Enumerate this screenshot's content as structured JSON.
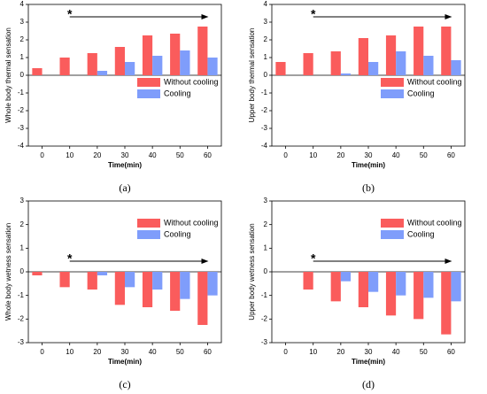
{
  "chart_data": [
    {
      "type": "bar",
      "panel_label": "(a)",
      "ylabel": "Whole body thermal sensation",
      "xlabel": "Time(min)",
      "annotation": "*",
      "categories": [
        "0",
        "10",
        "20",
        "30",
        "40",
        "50",
        "60"
      ],
      "series": [
        {
          "name": "Without cooling",
          "color": "#fa5c5c",
          "values": [
            0.4,
            1.0,
            1.25,
            1.6,
            2.25,
            2.35,
            2.75
          ]
        },
        {
          "name": "Cooling",
          "color": "#7f9dfb",
          "values": [
            null,
            null,
            0.25,
            0.75,
            1.1,
            1.4,
            1.0
          ]
        }
      ],
      "ylim": [
        -4,
        4
      ],
      "yticks": [
        -4,
        -3,
        -2,
        -1,
        0,
        1,
        2,
        3,
        4
      ],
      "legend": "lower right"
    },
    {
      "type": "bar",
      "panel_label": "(b)",
      "ylabel": "Upper body thermal sensation",
      "xlabel": "Time(min)",
      "annotation": "*",
      "categories": [
        "0",
        "10",
        "20",
        "30",
        "40",
        "50",
        "60"
      ],
      "series": [
        {
          "name": "Without cooling",
          "color": "#fa5c5c",
          "values": [
            0.75,
            1.25,
            1.35,
            2.1,
            2.25,
            2.75,
            2.75
          ]
        },
        {
          "name": "Cooling",
          "color": "#7f9dfb",
          "values": [
            null,
            null,
            0.1,
            0.75,
            1.35,
            1.1,
            0.85
          ]
        }
      ],
      "ylim": [
        -4,
        4
      ],
      "yticks": [
        -4,
        -3,
        -2,
        -1,
        0,
        1,
        2,
        3,
        4
      ],
      "legend": "lower right"
    },
    {
      "type": "bar",
      "panel_label": "(c)",
      "ylabel": "Whole body wetness sensation",
      "xlabel": "Time(min)",
      "annotation": "*",
      "categories": [
        "0",
        "10",
        "20",
        "30",
        "40",
        "50",
        "60"
      ],
      "series": [
        {
          "name": "Without cooling",
          "color": "#fa5c5c",
          "values": [
            -0.15,
            -0.65,
            -0.75,
            -1.4,
            -1.5,
            -1.65,
            -2.25
          ]
        },
        {
          "name": "Cooling",
          "color": "#7f9dfb",
          "values": [
            null,
            null,
            -0.15,
            -0.65,
            -0.75,
            -1.15,
            -1.0
          ]
        }
      ],
      "ylim": [
        -3,
        3
      ],
      "yticks": [
        -3,
        -2,
        -1,
        0,
        1,
        2,
        3
      ],
      "legend": "upper right"
    },
    {
      "type": "bar",
      "panel_label": "(d)",
      "ylabel": "Upper body wetness sensation",
      "xlabel": "Time(min)",
      "annotation": "*",
      "categories": [
        "0",
        "10",
        "20",
        "30",
        "40",
        "50",
        "60"
      ],
      "series": [
        {
          "name": "Without cooling",
          "color": "#fa5c5c",
          "values": [
            null,
            -0.75,
            -1.25,
            -1.5,
            -1.85,
            -2.0,
            -2.65
          ]
        },
        {
          "name": "Cooling",
          "color": "#7f9dfb",
          "values": [
            null,
            null,
            -0.4,
            -0.85,
            -1.0,
            -1.1,
            -1.25
          ]
        }
      ],
      "ylim": [
        -3,
        3
      ],
      "yticks": [
        -3,
        -2,
        -1,
        0,
        1,
        2,
        3
      ],
      "legend": "upper right"
    }
  ]
}
